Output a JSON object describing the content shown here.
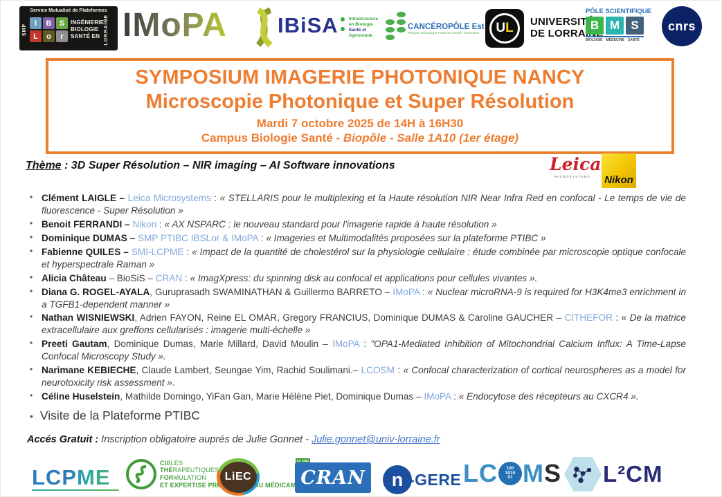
{
  "header": {
    "ibslor": {
      "top": "Service Mutualisé de Plateformes",
      "smp": "SMP",
      "tiles": [
        "I",
        "B",
        "S",
        "L",
        "o",
        "r"
      ],
      "right1": "INGÉNIERIE",
      "right2": "BIOLOGIE",
      "right3": "SANTÉ EN",
      "vertical": "LORRAINE"
    },
    "imopa": "IMoPA",
    "ibisa": {
      "name": "IBiSA",
      "tagline1": "Infrastructure",
      "tagline2": "en Biologie",
      "tagline3": "Santé et",
      "tagline4": "Agronomie"
    },
    "canceropole": {
      "name": "CANCÉROPÔLE Est",
      "subtitle": "Régions Bourgogne-Franche-Comté / Grand Est"
    },
    "ul": {
      "u": "U",
      "l": "L",
      "line1": "UNIVERSITÉ",
      "line2": "DE LORRAINE"
    },
    "bms": {
      "top": "PÔLE SCIENTIFIQUE",
      "letters": [
        "B",
        "M",
        "S"
      ],
      "bottom": [
        "BIOLOGIE",
        "MÉDECINE",
        "SANTÉ"
      ]
    },
    "cnrs": "cnrs"
  },
  "title_box": {
    "line1": "SYMPOSIUM IMAGERIE PHOTONIQUE NANCY",
    "line2": "Microscopie Photonique et Super Résolution",
    "line3": "Mardi 7 octobre 2025 de 14H à 16H30",
    "line4_plain": "Campus Biologie Santé - ",
    "line4_italic": "Biopôle - Salle 1A10 (1er étage)"
  },
  "theme": {
    "label": "Thème",
    "separator": " : ",
    "text": "3D Super Résolution – NIR imaging – AI Software innovations"
  },
  "sponsors": {
    "leica": {
      "name": "Leica",
      "sub": "MICROSYSTEMS"
    },
    "nikon": "Nikon"
  },
  "talks": [
    [
      {
        "t": "Clément LAIGLE – ",
        "s": "b"
      },
      {
        "t": "Leica Microsystems",
        "s": "l"
      },
      {
        "t": " : ",
        "s": "p"
      },
      {
        "t": "« STELLARIS pour le multiplexing et la Haute résolution NIR Near Infra Red en confocal - Le temps de vie de fluorescence - Super Résolution »",
        "s": "i"
      }
    ],
    [
      {
        "t": "Benoit FERRANDI – ",
        "s": "b"
      },
      {
        "t": "Nikon",
        "s": "l"
      },
      {
        "t": " : ",
        "s": "p"
      },
      {
        "t": "« AX NSPARC : le nouveau standard pour l'imagerie rapide à haute résolution »",
        "s": "i"
      }
    ],
    [
      {
        "t": "Dominique DUMAS – ",
        "s": "b"
      },
      {
        "t": "SMP PTIBC IBSLor & IMoPA",
        "s": "l"
      },
      {
        "t": " : ",
        "s": "p"
      },
      {
        "t": "« Imageries et Multimodalités proposées sur la plateforme PTIBC »",
        "s": "i"
      }
    ],
    [
      {
        "t": "Fabienne QUILES – ",
        "s": "b"
      },
      {
        "t": "SMI-LCPME",
        "s": "l"
      },
      {
        "t": " : ",
        "s": "p"
      },
      {
        "t": "« Impact de la quantité de cholestérol sur la physiologie cellulaire : étude combinée par microscopie optique confocale et hyperspectrale Raman »",
        "s": "i"
      }
    ],
    [
      {
        "t": "Alicia Château",
        "s": "b"
      },
      {
        "t": " – BioSiS – ",
        "s": "p"
      },
      {
        "t": "CRAN",
        "s": "l"
      },
      {
        "t": " : ",
        "s": "p"
      },
      {
        "t": "« ImagXpress: du spinning disk au confocal et applications pour cellules vivantes ».",
        "s": "i"
      }
    ],
    [
      {
        "t": "Diana G. ROGEL-AYALA",
        "s": "b"
      },
      {
        "t": ", Guruprasadh SWAMINATHAN & Guillermo BARRETO – ",
        "s": "p"
      },
      {
        "t": "IMoPA",
        "s": "l"
      },
      {
        "t": " : ",
        "s": "p"
      },
      {
        "t": "« Nuclear microRNA-9 is required for H3K4me3 enrichment in a TGFB1-dependent manner »",
        "s": "i"
      }
    ],
    [
      {
        "t": "Nathan WISNIEWSKI",
        "s": "b"
      },
      {
        "t": ", Adrien FAYON, Reine EL OMAR, Gregory FRANCIUS, Dominique DUMAS & Caroline GAUCHER – ",
        "s": "p"
      },
      {
        "t": "CITHEFOR",
        "s": "l"
      },
      {
        "t": " : ",
        "s": "p"
      },
      {
        "t": "« De la matrice extracellulaire aux greffons cellularisés : imagerie multi-échelle »",
        "s": "i"
      }
    ],
    [
      {
        "t": "Preeti Gautam",
        "s": "b"
      },
      {
        "t": ", Dominique Dumas, Marie Millard, David Moulin – ",
        "s": "p"
      },
      {
        "t": "IMoPA",
        "s": "l"
      },
      {
        "t": " : ",
        "s": "p"
      },
      {
        "t": "\"OPA1-Mediated Inhibition of Mitochondrial Calcium Influx: A Time-Lapse Confocal Microscopy Study ».",
        "s": "i"
      }
    ],
    [
      {
        "t": "Narimane KEBIECHE",
        "s": "b"
      },
      {
        "t": ", Claude Lambert, Seungae Yim, Rachid Soulimani.– ",
        "s": "p"
      },
      {
        "t": "LCOSM",
        "s": "l"
      },
      {
        "t": " : ",
        "s": "p"
      },
      {
        "t": "« Confocal characterization of cortical neurospheres as a model for neurotoxicity risk assessment ».",
        "s": "i"
      }
    ],
    [
      {
        "t": "Céline Huselstein",
        "s": "b"
      },
      {
        "t": ", Mathilde Domingo, YiFan Gan, Marie Hélène Piet, Dominique Dumas – ",
        "s": "p"
      },
      {
        "t": "IMoPA",
        "s": "l"
      },
      {
        "t": " : ",
        "s": "p"
      },
      {
        "t": "« Endocytose des récepteurs au CXCR4 ».",
        "s": "i"
      }
    ]
  ],
  "visit": "Visite de la Plateforme PTIBC",
  "access": {
    "label": "Accés Gratuit :",
    "text": " Inscription obligatoire auprés de Julie Gonnet - ",
    "email": "Julie.gonnet@univ-lorraine.fr"
  },
  "footer": {
    "lcpme": "LCPME",
    "cithefor": {
      "lines": [
        [
          "CI",
          "BLES"
        ],
        [
          "THÉ",
          "RAPEUTIQUES"
        ],
        [
          "FOR",
          "MULATION"
        ]
      ],
      "small": "ET EXPERTISE PRÉCLINIQUE DU MÉDICAMENT",
      "badge": "EA 3452"
    },
    "liec": "LiEC",
    "cran": "CRAN",
    "ngere": {
      "n": "n",
      "rest": "-GERE"
    },
    "lcoms": {
      "pre": "LC",
      "binary": [
        "100",
        "1010",
        "01"
      ],
      "post": "MS"
    },
    "l2cm": "L²CM"
  },
  "colors": {
    "accent_orange": "#ED7D31",
    "lab_link_blue": "#7FA7DC",
    "email_blue": "#4472C4",
    "text": "#3D3D3D"
  }
}
